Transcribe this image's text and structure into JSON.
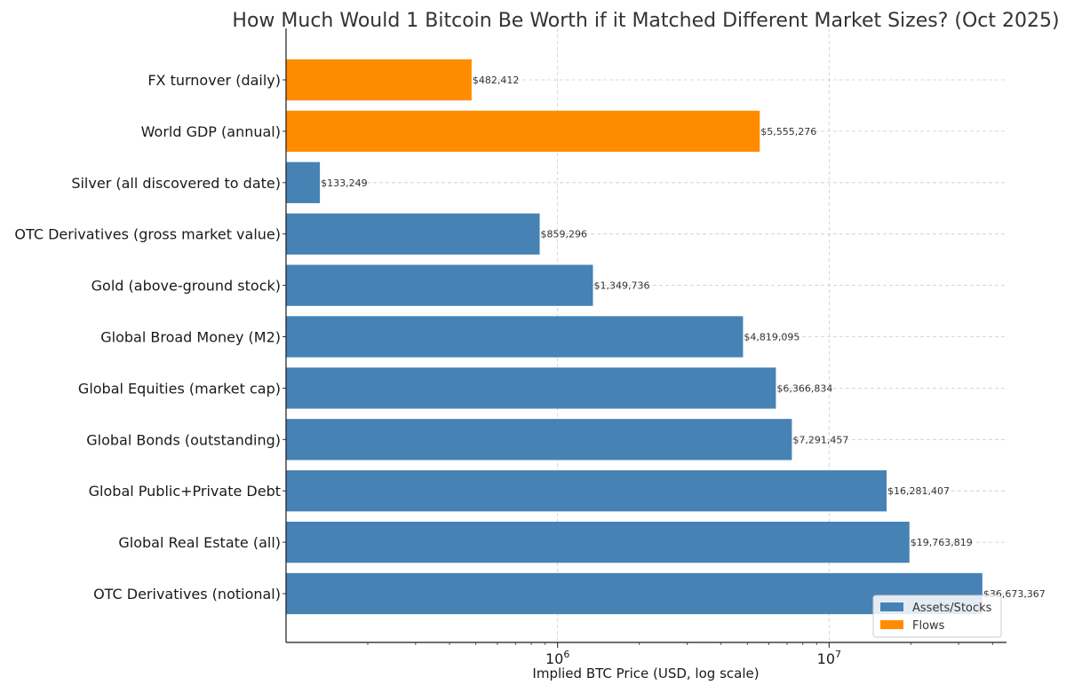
{
  "chart_data": {
    "type": "bar",
    "orientation": "horizontal",
    "title": "How Much Would 1 Bitcoin Be Worth if it Matched Different Market Sizes? (Oct 2025)",
    "xlabel": "Implied BTC Price (USD, log scale)",
    "ylabel": "",
    "xscale": "log",
    "xlim": [
      100000,
      45000000
    ],
    "grid": true,
    "legend_position": "bottom-right",
    "x_ticks": [
      {
        "value": 1000000,
        "label": "10",
        "exponent": "6"
      },
      {
        "value": 10000000,
        "label": "10",
        "exponent": "7"
      }
    ],
    "series": [
      {
        "name": "Assets/Stocks",
        "color": "#4682B4"
      },
      {
        "name": "Flows",
        "color": "#FF8C00"
      }
    ],
    "bars": [
      {
        "category": "FX turnover (daily)",
        "value": 482412,
        "label": "$482,412",
        "series": "Flows"
      },
      {
        "category": "World GDP (annual)",
        "value": 5555276,
        "label": "$5,555,276",
        "series": "Flows"
      },
      {
        "category": "Silver (all discovered to date)",
        "value": 133249,
        "label": "$133,249",
        "series": "Assets/Stocks"
      },
      {
        "category": "OTC Derivatives (gross market value)",
        "value": 859296,
        "label": "$859,296",
        "series": "Assets/Stocks"
      },
      {
        "category": "Gold (above-ground stock)",
        "value": 1349736,
        "label": "$1,349,736",
        "series": "Assets/Stocks"
      },
      {
        "category": "Global Broad Money (M2)",
        "value": 4819095,
        "label": "$4,819,095",
        "series": "Assets/Stocks"
      },
      {
        "category": "Global Equities (market cap)",
        "value": 6366834,
        "label": "$6,366,834",
        "series": "Assets/Stocks"
      },
      {
        "category": "Global Bonds (outstanding)",
        "value": 7291457,
        "label": "$7,291,457",
        "series": "Assets/Stocks"
      },
      {
        "category": "Global Public+Private Debt",
        "value": 16281407,
        "label": "$16,281,407",
        "series": "Assets/Stocks"
      },
      {
        "category": "Global Real Estate (all)",
        "value": 19763819,
        "label": "$19,763,819",
        "series": "Assets/Stocks"
      },
      {
        "category": "OTC Derivatives (notional)",
        "value": 36673367,
        "label": "$36,673,367",
        "series": "Assets/Stocks"
      }
    ]
  }
}
